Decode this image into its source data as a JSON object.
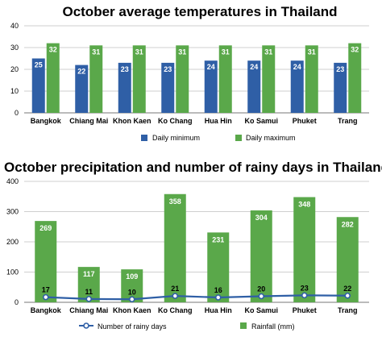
{
  "chart_data": [
    {
      "type": "bar",
      "title": "October average temperatures in Thailand",
      "categories": [
        "Bangkok",
        "Chiang Mai",
        "Khon Kaen",
        "Ko Chang",
        "Hua Hin",
        "Ko Samui",
        "Phuket",
        "Trang"
      ],
      "yticks": [
        "0",
        "10",
        "20",
        "30",
        "40"
      ],
      "ylim": [
        0,
        40
      ],
      "grid": true,
      "legend_position": "bottom",
      "series": [
        {
          "name": "Daily minimum",
          "color": "#2f5fa6",
          "values": [
            25,
            22,
            23,
            23,
            24,
            24,
            24,
            23
          ]
        },
        {
          "name": "Daily maximum",
          "color": "#5aa84a",
          "values": [
            32,
            31,
            31,
            31,
            31,
            31,
            31,
            32
          ]
        }
      ]
    },
    {
      "type": "bar",
      "title": "October precipitation and number of rainy days in Thailand",
      "categories": [
        "Bangkok",
        "Chiang Mai",
        "Khon Kaen",
        "Ko Chang",
        "Hua Hin",
        "Ko Samui",
        "Phuket",
        "Trang"
      ],
      "yticks": [
        "0",
        "100",
        "200",
        "300",
        "400"
      ],
      "ylim": [
        0,
        400
      ],
      "grid": true,
      "legend_position": "bottom",
      "series": [
        {
          "name": "Rainfall (mm)",
          "type": "bar",
          "color": "#5aa84a",
          "values": [
            269,
            117,
            109,
            358,
            231,
            304,
            348,
            282
          ]
        },
        {
          "name": "Number of rainy days",
          "type": "line",
          "color": "#2f5fa6",
          "values": [
            17,
            11,
            10,
            21,
            16,
            20,
            23,
            22
          ]
        }
      ]
    }
  ]
}
